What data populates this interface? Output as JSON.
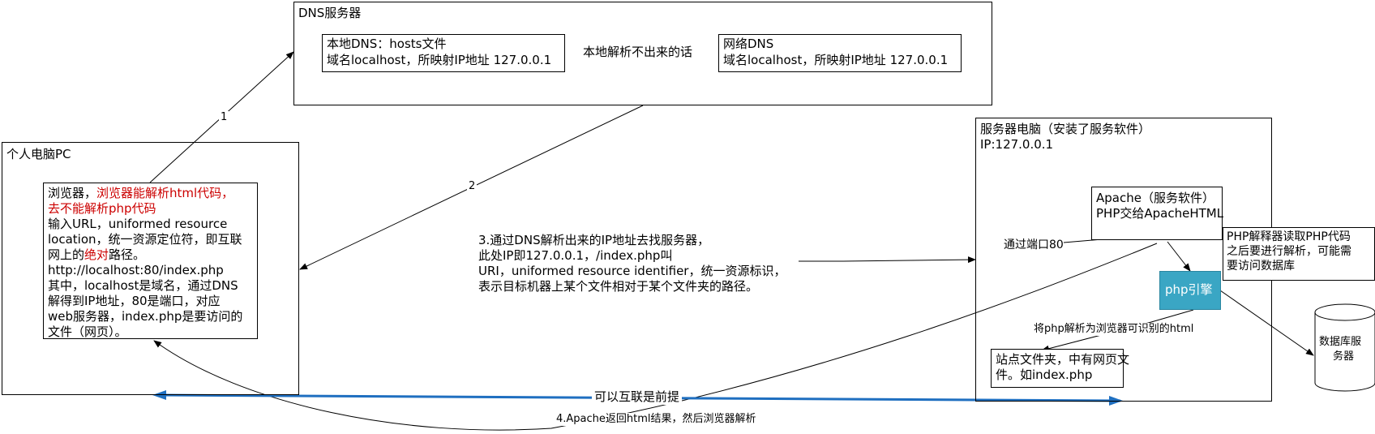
{
  "dns_server": {
    "title": "DNS服务器",
    "local_dns": {
      "line1": "本地DNS：hosts文件",
      "line2": "域名localhost，所映射IP地址 127.0.0.1"
    },
    "net_dns": {
      "line1": "网络DNS",
      "line2": "域名localhost，所映射IP地址 127.0.0.1"
    },
    "fallback_label": "本地解析不出来的话"
  },
  "pc": {
    "title": "个人电脑PC",
    "browser": {
      "l1_prefix": "浏览器，",
      "l1_red": "浏览器能解析html代码，",
      "l2_red": "去不能解析php代码",
      "l3": "输入URL，uniformed resource",
      "l4": "location，统一资源定位符，即互联",
      "l5_pre": "网上的",
      "l5_red": "绝对",
      "l5_post": "路径。",
      "l6": "http://localhost:80/index.php",
      "l7": "其中，localhost是域名，通过DNS",
      "l8": "解得到IP地址，80是端口，对应",
      "l9": "web服务器，index.php是要访问的",
      "l10": "文件（网页）。"
    }
  },
  "server": {
    "title": "服务器电脑（安装了服务软件）",
    "ip": "IP:127.0.0.1",
    "apache": {
      "line1": "Apache（服务软件）",
      "line2": "PHP交给ApacheHTML"
    },
    "php_engine": "php引擎",
    "php_note": {
      "line1": "PHP解释器读取PHP代码",
      "line2": "之后要进行解析，可能需",
      "line3": "要访问数据库"
    },
    "site_folder": {
      "line1": "站点文件夹，中有网页文",
      "line2": "件。如index.php"
    },
    "port_label": "通过端口80",
    "parse_label": "将php解析为浏览器可识别的html"
  },
  "database": {
    "line1": "数据库服",
    "line2": "务器"
  },
  "steps": {
    "step1": "1",
    "step2": "2",
    "step3": {
      "l1": "3.通过DNS解析出来的IP地址去找服务器，",
      "l2": "此处IP即127.0.0.1，/index.php叫",
      "l3": "URI，uniformed resource identifier，统一资源标识，",
      "l4": "表示目标机器上某个文件相对于某个文件夹的路径。"
    },
    "step4": "4.Apache返回html结果，然后浏览器解析"
  },
  "internet_label": "可以互联是前提",
  "colors": {
    "php_engine_fill": "#3aa6c4",
    "internet_arrow": "#1f6fc0",
    "red_text": "#cc0000"
  }
}
